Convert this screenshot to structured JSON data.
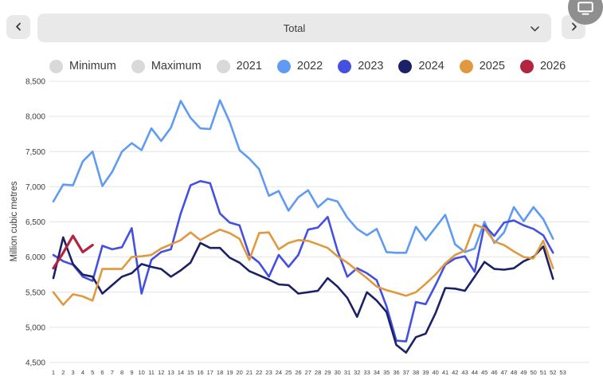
{
  "header": {
    "prev_icon": "chevron-left-icon",
    "next_icon": "chevron-right-icon",
    "dropdown_value": "Total",
    "screen_badge_icon": "monitor-icon"
  },
  "colors": {
    "inactive_gray": "#d9d9d9",
    "y2022": "#5f9bf3",
    "y2023": "#4450e0",
    "y2024": "#1b2167",
    "y2025": "#e0993f",
    "y2026": "#b22440",
    "grid": "#e4e4e4",
    "axis_text": "#3c3c3c",
    "control_bg": "#e9e9e9"
  },
  "chart_data": {
    "type": "line",
    "title": "",
    "xlabel": "",
    "ylabel": "Million cubic metres",
    "ylim": [
      4500,
      8500
    ],
    "yticks": [
      8500,
      8000,
      7500,
      7000,
      6500,
      6000,
      5500,
      5000,
      4500
    ],
    "x_range": [
      1,
      53
    ],
    "grid": true,
    "legend_position": "top",
    "legend": [
      {
        "label": "Minimum",
        "color": "#d9d9d9",
        "active": false
      },
      {
        "label": "Maximum",
        "color": "#d9d9d9",
        "active": false
      },
      {
        "label": "2021",
        "color": "#d9d9d9",
        "active": false
      },
      {
        "label": "2022",
        "color": "#5f9bf3",
        "active": true
      },
      {
        "label": "2023",
        "color": "#4450e0",
        "active": true
      },
      {
        "label": "2024",
        "color": "#1b2167",
        "active": true
      },
      {
        "label": "2025",
        "color": "#e0993f",
        "active": true
      },
      {
        "label": "2026",
        "color": "#b22440",
        "active": true
      }
    ],
    "series": [
      {
        "name": "2022",
        "color": "#5f9bf3",
        "width": 2.6,
        "start_week": 1,
        "values": [
          6790,
          7030,
          7020,
          7360,
          7500,
          7010,
          7210,
          7500,
          7620,
          7520,
          7830,
          7650,
          7840,
          8220,
          7980,
          7830,
          7820,
          8230,
          7920,
          7520,
          7400,
          7250,
          6870,
          6940,
          6660,
          6850,
          6950,
          6710,
          6830,
          6790,
          6560,
          6400,
          6310,
          6400,
          6070,
          6060,
          6060,
          6430,
          6240,
          6420,
          6600,
          6180,
          6070,
          6120,
          6500,
          6200,
          6350,
          6710,
          6510,
          6710,
          6540,
          6260
        ]
      },
      {
        "name": "2023",
        "color": "#4450e0",
        "width": 2.6,
        "start_week": 1,
        "values": [
          6030,
          5940,
          5890,
          5720,
          5660,
          6160,
          6110,
          6140,
          6410,
          5480,
          5960,
          6070,
          6110,
          6620,
          7020,
          7080,
          7050,
          6620,
          6490,
          6450,
          6030,
          5920,
          5720,
          6030,
          5860,
          6030,
          6390,
          6420,
          6570,
          6090,
          5720,
          5840,
          5770,
          5670,
          5300,
          4810,
          4800,
          5360,
          5330,
          5600,
          5890,
          5980,
          6010,
          5790,
          6450,
          6300,
          6490,
          6520,
          6450,
          6400,
          6310,
          6060
        ]
      },
      {
        "name": "2024",
        "color": "#1b2167",
        "width": 2.6,
        "start_week": 1,
        "values": [
          5700,
          6280,
          5900,
          5750,
          5720,
          5480,
          5600,
          5720,
          5770,
          5900,
          5860,
          5830,
          5720,
          5810,
          5920,
          6200,
          6130,
          6130,
          5990,
          5920,
          5800,
          5740,
          5680,
          5610,
          5600,
          5480,
          5500,
          5520,
          5700,
          5580,
          5420,
          5150,
          5500,
          5380,
          5220,
          4750,
          4640,
          4860,
          4910,
          5200,
          5560,
          5550,
          5520,
          5720,
          5930,
          5830,
          5820,
          5840,
          5940,
          6000,
          6150,
          5690
        ]
      },
      {
        "name": "2025",
        "color": "#e0993f",
        "width": 2.6,
        "start_week": 1,
        "values": [
          5500,
          5320,
          5470,
          5440,
          5380,
          5830,
          5830,
          5830,
          6000,
          6010,
          6030,
          6120,
          6180,
          6240,
          6350,
          6240,
          6320,
          6390,
          6340,
          6260,
          5960,
          6340,
          6350,
          6110,
          6200,
          6240,
          6230,
          6180,
          6130,
          6010,
          5920,
          5810,
          5700,
          5580,
          5530,
          5490,
          5450,
          5500,
          5620,
          5750,
          5910,
          6030,
          6090,
          6460,
          6410,
          6220,
          6170,
          6080,
          6000,
          5980,
          6230,
          5840
        ]
      },
      {
        "name": "2026",
        "color": "#b22440",
        "width": 3.2,
        "start_week": 1,
        "values": [
          5840,
          6060,
          6300,
          6070,
          6170
        ]
      }
    ]
  }
}
